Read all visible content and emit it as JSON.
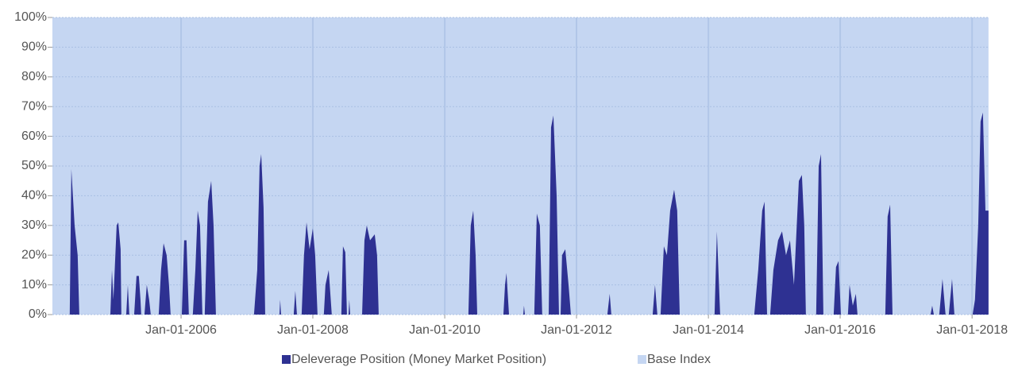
{
  "chart_data": {
    "type": "area",
    "x": [
      "2004-01-19",
      "2004-04-24",
      "2004-05-03",
      "2004-05-21",
      "2004-06-07",
      "2004-06-16",
      "2004-12-05",
      "2004-12-14",
      "2004-12-22",
      "2005-01-09",
      "2005-01-18",
      "2005-01-31",
      "2005-02-04",
      "2005-03-03",
      "2005-03-12",
      "2005-03-20",
      "2005-04-16",
      "2005-04-29",
      "2005-05-12",
      "2005-05-21",
      "2005-05-25",
      "2005-06-12",
      "2005-06-25",
      "2005-07-08",
      "2005-07-17",
      "2005-08-30",
      "2005-09-12",
      "2005-09-26",
      "2005-10-13",
      "2005-10-26",
      "2005-11-04",
      "2006-01-05",
      "2006-01-18",
      "2006-01-31",
      "2006-02-13",
      "2006-03-07",
      "2006-03-21",
      "2006-04-03",
      "2006-04-16",
      "2006-04-29",
      "2006-05-12",
      "2006-05-30",
      "2006-06-17",
      "2006-06-30",
      "2006-07-13",
      "2007-02-09",
      "2007-02-27",
      "2007-03-12",
      "2007-03-21",
      "2007-04-03",
      "2007-04-12",
      "2007-06-30",
      "2007-07-04",
      "2007-07-09",
      "2007-09-17",
      "2007-09-26",
      "2007-10-05",
      "2007-10-31",
      "2007-11-13",
      "2007-11-27",
      "2007-12-14",
      "2008-01-01",
      "2008-01-14",
      "2008-01-27",
      "2008-03-02",
      "2008-03-11",
      "2008-03-29",
      "2008-04-15",
      "2008-06-07",
      "2008-06-16",
      "2008-06-29",
      "2008-07-08",
      "2008-07-17",
      "2008-07-21",
      "2008-07-26",
      "2008-09-30",
      "2008-10-13",
      "2008-10-26",
      "2008-11-13",
      "2008-12-09",
      "2008-12-22",
      "2008-12-31",
      "2010-05-12",
      "2010-05-25",
      "2010-06-08",
      "2010-06-21",
      "2010-06-30",
      "2010-11-22",
      "2010-12-01",
      "2010-12-09",
      "2010-12-23",
      "2011-03-12",
      "2011-03-16",
      "2011-03-21",
      "2011-05-12",
      "2011-05-26",
      "2011-06-12",
      "2011-06-25",
      "2011-07-31",
      "2011-08-13",
      "2011-08-26",
      "2011-09-13",
      "2011-09-26",
      "2011-10-05",
      "2011-10-13",
      "2011-10-31",
      "2011-11-18",
      "2011-12-01",
      "2012-06-20",
      "2012-07-03",
      "2012-07-12",
      "2013-02-26",
      "2013-03-11",
      "2013-03-24",
      "2013-04-11",
      "2013-04-29",
      "2013-05-16",
      "2013-06-03",
      "2013-06-25",
      "2013-07-12",
      "2013-07-26",
      "2014-02-04",
      "2014-02-17",
      "2014-03-07",
      "2014-09-12",
      "2014-10-04",
      "2014-10-26",
      "2014-11-08",
      "2014-11-22",
      "2014-12-09",
      "2014-12-27",
      "2015-01-22",
      "2015-02-13",
      "2015-03-07",
      "2015-03-29",
      "2015-04-20",
      "2015-05-17",
      "2015-06-03",
      "2015-06-16",
      "2015-06-25",
      "2015-08-21",
      "2015-09-04",
      "2015-09-17",
      "2015-09-30",
      "2015-11-26",
      "2015-12-09",
      "2015-12-23",
      "2016-01-05",
      "2016-02-13",
      "2016-02-22",
      "2016-03-11",
      "2016-03-28",
      "2016-04-06",
      "2016-09-07",
      "2016-09-20",
      "2016-10-04",
      "2016-10-17",
      "2017-05-16",
      "2017-05-25",
      "2017-06-03",
      "2017-07-03",
      "2017-07-21",
      "2017-08-07",
      "2017-08-25",
      "2017-09-12",
      "2017-09-25",
      "2018-01-04",
      "2018-01-17",
      "2018-02-04",
      "2018-02-17",
      "2018-03-02",
      "2018-03-16",
      "2018-04-02"
    ],
    "series": [
      {
        "name": "Deleverage Position (Money Market Position)",
        "color": "#2e3192",
        "values": [
          0,
          0,
          49,
          30,
          20,
          0,
          0,
          15,
          5,
          30,
          31,
          22,
          0,
          0,
          10,
          0,
          0,
          13,
          13,
          5,
          0,
          0,
          10,
          5,
          0,
          0,
          15,
          24,
          20,
          10,
          0,
          0,
          25,
          25,
          0,
          0,
          15,
          35,
          30,
          0,
          0,
          38,
          45,
          30,
          0,
          0,
          15,
          50,
          54,
          36,
          0,
          0,
          5,
          0,
          0,
          8,
          0,
          0,
          20,
          31,
          22,
          29,
          20,
          0,
          0,
          10,
          15,
          0,
          0,
          23,
          21,
          0,
          0,
          5,
          0,
          0,
          25,
          30,
          25,
          27,
          20,
          0,
          0,
          30,
          35,
          20,
          0,
          0,
          10,
          14,
          0,
          0,
          3,
          0,
          0,
          34,
          30,
          0,
          0,
          63,
          67,
          40,
          0,
          0,
          20,
          22,
          10,
          0,
          0,
          7,
          0,
          0,
          10,
          0,
          0,
          23,
          20,
          35,
          42,
          35,
          0,
          0,
          28,
          0,
          0,
          15,
          35,
          38,
          0,
          0,
          15,
          25,
          28,
          20,
          25,
          10,
          45,
          47,
          30,
          0,
          0,
          50,
          54,
          0,
          0,
          16,
          18,
          0,
          0,
          10,
          3,
          7,
          0,
          0,
          33,
          37,
          0,
          0,
          3,
          0,
          0,
          12,
          0,
          0,
          12,
          0,
          0,
          5,
          30,
          65,
          68,
          35,
          35
        ]
      },
      {
        "name": "Base Index",
        "color": "#c5d6f2",
        "values": [
          100,
          100,
          100,
          100,
          100,
          100,
          100,
          100,
          100,
          100,
          100,
          100,
          100,
          100,
          100,
          100,
          100,
          100,
          100,
          100,
          100,
          100,
          100,
          100,
          100,
          100,
          100,
          100,
          100,
          100,
          100,
          100,
          100,
          100,
          100,
          100,
          100,
          100,
          100,
          100,
          100,
          100,
          100,
          100,
          100,
          100,
          100,
          100,
          100,
          100,
          100,
          100,
          100,
          100,
          100,
          100,
          100,
          100,
          100,
          100,
          100,
          100,
          100,
          100,
          100,
          100,
          100,
          100,
          100,
          100,
          100,
          100,
          100,
          100,
          100,
          100,
          100,
          100,
          100,
          100,
          100,
          100,
          100,
          100,
          100,
          100,
          100,
          100,
          100,
          100,
          100,
          100,
          100,
          100,
          100,
          100,
          100,
          100,
          100,
          100,
          100,
          100,
          100,
          100,
          100,
          100,
          100,
          100,
          100,
          100,
          100,
          100,
          100,
          100,
          100,
          100,
          100,
          100,
          100,
          100,
          100,
          100,
          100,
          100,
          100,
          100,
          100,
          100,
          100,
          100,
          100,
          100,
          100,
          100,
          100,
          100,
          100,
          100,
          100,
          100,
          100,
          100,
          100,
          100,
          100,
          100,
          100,
          100,
          100,
          100,
          100,
          100,
          100,
          100,
          100,
          100,
          100,
          100,
          100,
          100,
          100,
          100,
          100,
          100,
          100,
          100,
          100,
          100,
          100,
          100,
          100,
          100,
          100
        ]
      }
    ],
    "xlim": [
      "2004-01-19",
      "2018-04-07"
    ],
    "xticks": [
      {
        "value": "2006-01-01",
        "label": "Jan-01-2006"
      },
      {
        "value": "2008-01-01",
        "label": "Jan-01-2008"
      },
      {
        "value": "2010-01-01",
        "label": "Jan-01-2010"
      },
      {
        "value": "2012-01-01",
        "label": "Jan-01-2012"
      },
      {
        "value": "2014-01-01",
        "label": "Jan-01-2014"
      },
      {
        "value": "2016-01-01",
        "label": "Jan-01-2016"
      },
      {
        "value": "2018-01-01",
        "label": "Jan-01-2018"
      }
    ],
    "ylim": [
      0,
      100
    ],
    "yticks": [
      {
        "value": 0,
        "label": "0%"
      },
      {
        "value": 10,
        "label": "10%"
      },
      {
        "value": 20,
        "label": "20%"
      },
      {
        "value": 30,
        "label": "30%"
      },
      {
        "value": 40,
        "label": "40%"
      },
      {
        "value": 50,
        "label": "50%"
      },
      {
        "value": 60,
        "label": "60%"
      },
      {
        "value": 70,
        "label": "70%"
      },
      {
        "value": 80,
        "label": "80%"
      },
      {
        "value": 90,
        "label": "90%"
      },
      {
        "value": 100,
        "label": "100%"
      }
    ],
    "grid": true,
    "legend": "bottom"
  }
}
